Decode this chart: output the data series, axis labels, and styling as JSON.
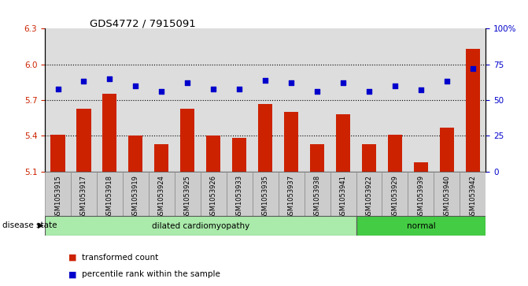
{
  "title": "GDS4772 / 7915091",
  "samples": [
    "GSM1053915",
    "GSM1053917",
    "GSM1053918",
    "GSM1053919",
    "GSM1053924",
    "GSM1053925",
    "GSM1053926",
    "GSM1053933",
    "GSM1053935",
    "GSM1053937",
    "GSM1053938",
    "GSM1053941",
    "GSM1053922",
    "GSM1053929",
    "GSM1053939",
    "GSM1053940",
    "GSM1053942"
  ],
  "bar_values": [
    5.41,
    5.63,
    5.75,
    5.4,
    5.33,
    5.63,
    5.4,
    5.38,
    5.67,
    5.6,
    5.33,
    5.58,
    5.33,
    5.41,
    5.18,
    5.47,
    6.13
  ],
  "dot_values": [
    58,
    63,
    65,
    60,
    56,
    62,
    58,
    58,
    64,
    62,
    56,
    62,
    56,
    60,
    57,
    63,
    72
  ],
  "disease_groups": [
    {
      "label": "dilated cardiomyopathy",
      "start": 0,
      "end": 12,
      "color": "#AAEAAA"
    },
    {
      "label": "normal",
      "start": 12,
      "end": 17,
      "color": "#44CC44"
    }
  ],
  "ylim_left": [
    5.1,
    6.3
  ],
  "ylim_right": [
    0,
    100
  ],
  "yticks_left": [
    5.1,
    5.4,
    5.7,
    6.0,
    6.3
  ],
  "yticks_right": [
    0,
    25,
    50,
    75,
    100
  ],
  "bar_color": "#CC2200",
  "dot_color": "#0000CC",
  "plot_bg_color": "#DDDDDD",
  "tick_bg_color": "#CCCCCC",
  "grid_lines": [
    5.4,
    5.7,
    6.0
  ],
  "legend_items": [
    {
      "label": "transformed count",
      "color": "#CC2200"
    },
    {
      "label": "percentile rank within the sample",
      "color": "#0000CC"
    }
  ]
}
